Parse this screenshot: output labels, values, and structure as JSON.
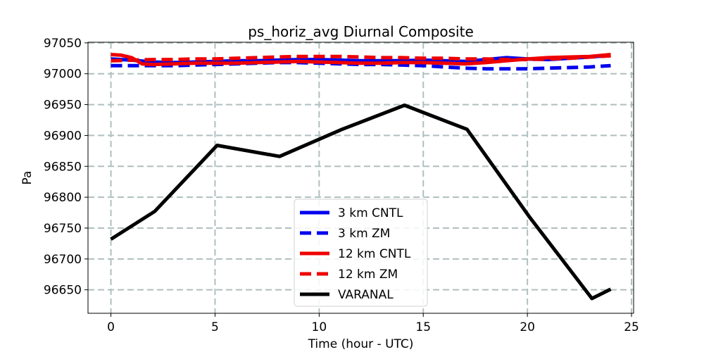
{
  "chart_data": {
    "type": "line",
    "title": "ps_horiz_avg Diurnal Composite",
    "xlabel": "Time (hour - UTC)",
    "ylabel": "Pa",
    "xlim": [
      -1.1,
      25.1
    ],
    "ylim": [
      96612,
      97051
    ],
    "xticks": [
      0,
      5,
      10,
      15,
      20,
      25
    ],
    "yticks": [
      96650,
      96700,
      96750,
      96800,
      96850,
      96900,
      96950,
      97000,
      97050
    ],
    "grid": true,
    "legend_position": "lower center",
    "series": [
      {
        "name": "3 km CNTL",
        "color": "#0000ee",
        "dash": "solid",
        "x": [
          0,
          1,
          2,
          3,
          4,
          5,
          6,
          7,
          8,
          9,
          10,
          11,
          12,
          13,
          14,
          15,
          16,
          17,
          18,
          19,
          20,
          21,
          22,
          23,
          24
        ],
        "y": [
          97024,
          97022,
          97019,
          97018,
          97019,
          97020,
          97021,
          97021,
          97022,
          97023,
          97023,
          97022,
          97021,
          97021,
          97021,
          97022,
          97021,
          97020,
          97023,
          97026,
          97024,
          97023,
          97025,
          97027,
          97030
        ]
      },
      {
        "name": "3 km ZM",
        "color": "#0000ee",
        "dash": "dashed",
        "x": [
          0,
          1,
          2,
          3,
          4,
          5,
          6,
          7,
          8,
          9,
          10,
          11,
          12,
          13,
          14,
          15,
          16,
          17,
          18,
          19,
          20,
          21,
          22,
          23,
          24
        ],
        "y": [
          97013,
          97013,
          97013,
          97013,
          97014,
          97015,
          97016,
          97017,
          97018,
          97018,
          97017,
          97016,
          97015,
          97015,
          97014,
          97013,
          97011,
          97009,
          97008,
          97008,
          97008,
          97009,
          97010,
          97011,
          97013
        ]
      },
      {
        "name": "12 km CNTL",
        "color": "#ee0000",
        "dash": "solid",
        "x": [
          0,
          0.5,
          1,
          1.5,
          2,
          3,
          4,
          5,
          6,
          7,
          8,
          9,
          10,
          11,
          12,
          13,
          14,
          15,
          16,
          17,
          18,
          19,
          20,
          21,
          22,
          23,
          24
        ],
        "y": [
          97031,
          97030,
          97026,
          97016,
          97015,
          97016,
          97017,
          97017,
          97017,
          97018,
          97019,
          97020,
          97019,
          97018,
          97017,
          97017,
          97018,
          97018,
          97017,
          97016,
          97018,
          97021,
          97024,
          97026,
          97027,
          97028,
          97031
        ]
      },
      {
        "name": "12 km ZM",
        "color": "#ee0000",
        "dash": "dashed",
        "x": [
          0,
          1,
          2,
          3,
          4,
          5,
          6,
          7,
          8,
          9,
          10,
          11,
          12,
          13,
          14,
          15,
          16,
          17,
          18,
          19,
          20,
          21,
          22,
          23,
          24
        ],
        "y": [
          97021,
          97022,
          97023,
          97023,
          97024,
          97024,
          97025,
          97026,
          97027,
          97028,
          97028,
          97028,
          97027,
          97026,
          97026,
          97025,
          97025,
          97024,
          97024,
          97023,
          97023,
          97024,
          97025,
          97027,
          97029
        ]
      },
      {
        "name": "VARANAL",
        "color": "#000000",
        "dash": "solid",
        "x": [
          0,
          2.1,
          5.1,
          8.1,
          11.1,
          14.1,
          17.1,
          20.1,
          23.1,
          24
        ],
        "y": [
          96732,
          96777,
          96884,
          96866,
          96910,
          96949,
          96910,
          96768,
          96636,
          96651
        ]
      }
    ]
  }
}
